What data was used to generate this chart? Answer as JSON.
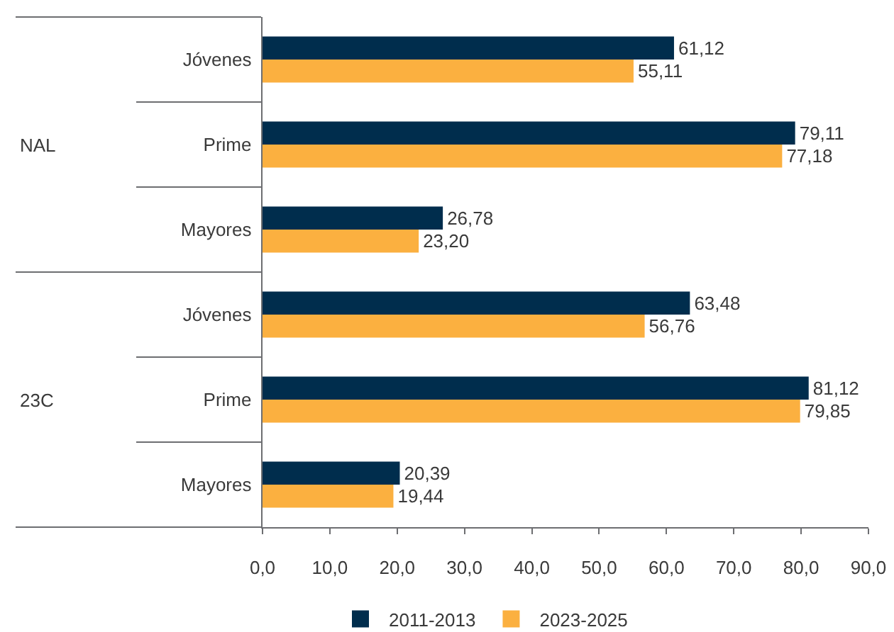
{
  "chart_data": {
    "type": "bar",
    "orientation": "horizontal",
    "categories": [
      "Jóvenes",
      "Prime",
      "Mayores",
      "Jóvenes",
      "Prime",
      "Mayores"
    ],
    "series": [
      {
        "name": "2011-2013",
        "color": "#002d4d",
        "values": [
          61.12,
          79.11,
          26.78,
          63.48,
          81.12,
          20.39
        ],
        "value_labels": [
          "61,12",
          "79,11",
          "26,78",
          "63,48",
          "81,12",
          "20,39"
        ]
      },
      {
        "name": "2023-2025",
        "color": "#fbb040",
        "values": [
          55.11,
          77.18,
          23.2,
          56.76,
          79.85,
          19.44
        ],
        "value_labels": [
          "55,11",
          "77,18",
          "23,20",
          "56,76",
          "79,85",
          "19,44"
        ]
      }
    ],
    "xlim": [
      0,
      90
    ],
    "xticks": [
      {
        "value": 0,
        "label": "0,0"
      },
      {
        "value": 10,
        "label": "10,0"
      },
      {
        "value": 20,
        "label": "20,0"
      },
      {
        "value": 30,
        "label": "30,0"
      },
      {
        "value": 40,
        "label": "40,0"
      },
      {
        "value": 50,
        "label": "50,0"
      },
      {
        "value": 60,
        "label": "60,0"
      },
      {
        "value": 70,
        "label": "70,0"
      },
      {
        "value": 80,
        "label": "80,0"
      },
      {
        "value": 90,
        "label": "90,0"
      }
    ],
    "legend": "bottom",
    "annotations": [
      "NAL",
      "23C"
    ]
  }
}
